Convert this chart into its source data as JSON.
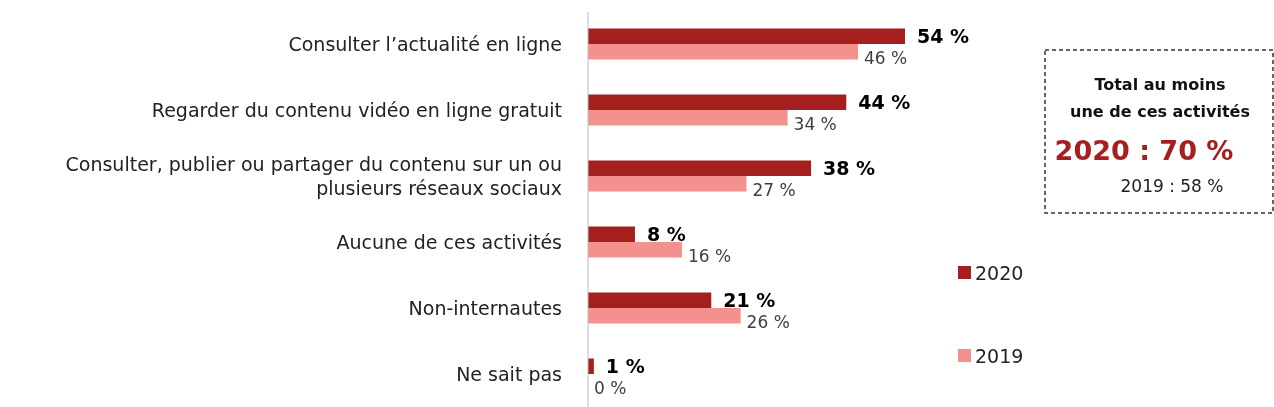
{
  "chart_data": {
    "type": "bar",
    "orientation": "horizontal",
    "categories": [
      "Consulter l’actualité en ligne",
      "Regarder du contenu vidéo en ligne gratuit",
      "Consulter, publier ou partager du contenu sur un ou plusieurs réseaux sociaux",
      "Aucune de ces activités",
      "Non-internautes",
      "Ne sait pas"
    ],
    "series": [
      {
        "name": "2020",
        "color": "#a51f1f",
        "values": [
          54,
          44,
          38,
          8,
          21,
          1
        ],
        "value_labels": [
          "54 %",
          "44 %",
          "38 %",
          "8 %",
          "21 %",
          "1 %"
        ]
      },
      {
        "name": "2019",
        "color": "#f4908e",
        "values": [
          46,
          34,
          27,
          16,
          26,
          0
        ],
        "value_labels": [
          "46 %",
          "34 %",
          "27 %",
          "16 %",
          "26 %",
          "0 %"
        ]
      }
    ],
    "tick_labels": "y",
    "legend": "right",
    "annotations": [
      "Total au moins une de ces activités",
      "2020 : 70 %",
      "2019 : 58 %"
    ]
  }
}
